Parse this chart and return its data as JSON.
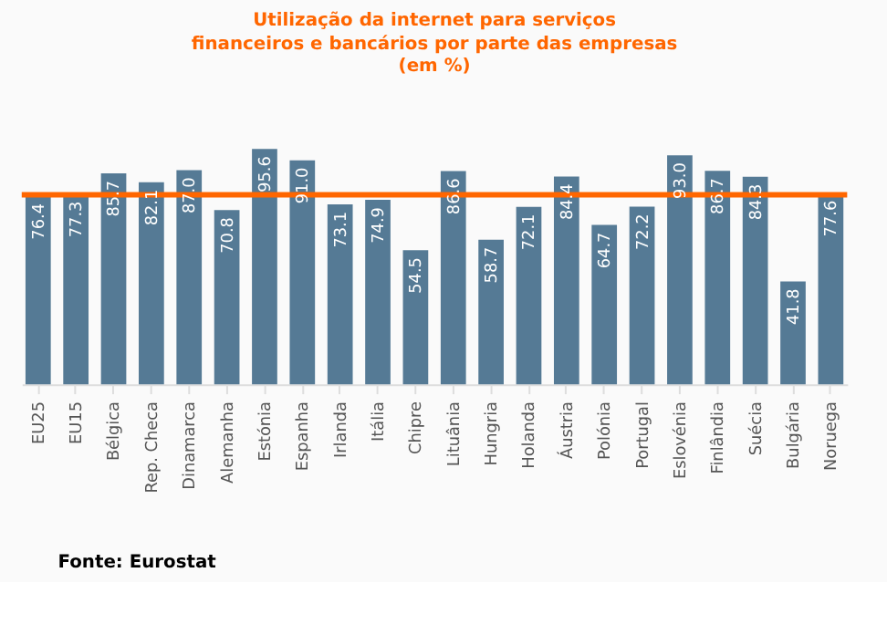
{
  "chart_data": {
    "type": "bar",
    "title": "Utilização da internet para serviços financeiros e bancários por parte das empresas",
    "subtitle": "(em %)",
    "categories": [
      "EU25",
      "EU15",
      "Bélgica",
      "Rep. Checa",
      "Dinamarca",
      "Alemanha",
      "Estónia",
      "Espanha",
      "Irlanda",
      "Itália",
      "Chipre",
      "Lituânia",
      "Hungria",
      "Holanda",
      "Áustria",
      "Polónia",
      "Portugal",
      "Eslovénia",
      "Finlândia",
      "Suécia",
      "Bulgária",
      "Noruega"
    ],
    "values": [
      76.4,
      77.3,
      85.7,
      82.1,
      87.0,
      70.8,
      95.6,
      91.0,
      73.1,
      74.9,
      54.5,
      86.6,
      58.7,
      72.1,
      84.4,
      64.7,
      72.2,
      93.0,
      86.7,
      84.3,
      41.8,
      77.6
    ],
    "value_labels": [
      "76.4",
      "77.3",
      "85.7",
      "82.1",
      "87.0",
      "70.8",
      "95.6",
      "91.0",
      "73.1",
      "74.9",
      "54.5",
      "86.6",
      "58.7",
      "72.1",
      "84.4",
      "64.7",
      "72.2",
      "93.0",
      "86.7",
      "84.3",
      "41.8",
      "77.6"
    ],
    "color": "#557a95",
    "tick_labels": "x",
    "grid": false,
    "ref_lines": [
      {
        "axis": "y",
        "value": 77,
        "color": "#ff6600"
      }
    ],
    "annotations": [
      "Fonte: Eurostat"
    ]
  }
}
